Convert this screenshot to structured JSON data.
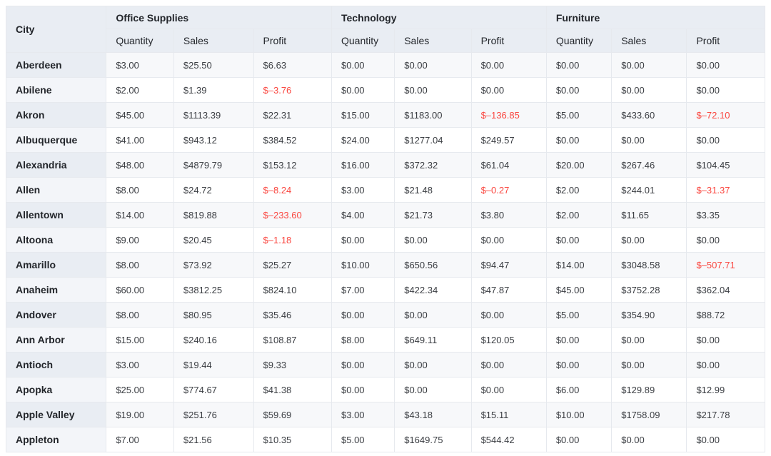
{
  "chart_data": {
    "type": "table",
    "row_dimension": "City",
    "column_groups": [
      "Office Supplies",
      "Technology",
      "Furniture"
    ],
    "measures": [
      "Quantity",
      "Sales",
      "Profit"
    ],
    "rows": [
      {
        "city": "Aberdeen",
        "values": [
          "$3.00",
          "$25.50",
          "$6.63",
          "$0.00",
          "$0.00",
          "$0.00",
          "$0.00",
          "$0.00",
          "$0.00"
        ]
      },
      {
        "city": "Abilene",
        "values": [
          "$2.00",
          "$1.39",
          "$–3.76",
          "$0.00",
          "$0.00",
          "$0.00",
          "$0.00",
          "$0.00",
          "$0.00"
        ]
      },
      {
        "city": "Akron",
        "values": [
          "$45.00",
          "$1113.39",
          "$22.31",
          "$15.00",
          "$1183.00",
          "$–136.85",
          "$5.00",
          "$433.60",
          "$–72.10"
        ]
      },
      {
        "city": "Albuquerque",
        "values": [
          "$41.00",
          "$943.12",
          "$384.52",
          "$24.00",
          "$1277.04",
          "$249.57",
          "$0.00",
          "$0.00",
          "$0.00"
        ]
      },
      {
        "city": "Alexandria",
        "values": [
          "$48.00",
          "$4879.79",
          "$153.12",
          "$16.00",
          "$372.32",
          "$61.04",
          "$20.00",
          "$267.46",
          "$104.45"
        ]
      },
      {
        "city": "Allen",
        "values": [
          "$8.00",
          "$24.72",
          "$–8.24",
          "$3.00",
          "$21.48",
          "$–0.27",
          "$2.00",
          "$244.01",
          "$–31.37"
        ]
      },
      {
        "city": "Allentown",
        "values": [
          "$14.00",
          "$819.88",
          "$–233.60",
          "$4.00",
          "$21.73",
          "$3.80",
          "$2.00",
          "$11.65",
          "$3.35"
        ]
      },
      {
        "city": "Altoona",
        "values": [
          "$9.00",
          "$20.45",
          "$–1.18",
          "$0.00",
          "$0.00",
          "$0.00",
          "$0.00",
          "$0.00",
          "$0.00"
        ]
      },
      {
        "city": "Amarillo",
        "values": [
          "$8.00",
          "$73.92",
          "$25.27",
          "$10.00",
          "$650.56",
          "$94.47",
          "$14.00",
          "$3048.58",
          "$–507.71"
        ]
      },
      {
        "city": "Anaheim",
        "values": [
          "$60.00",
          "$3812.25",
          "$824.10",
          "$7.00",
          "$422.34",
          "$47.87",
          "$45.00",
          "$3752.28",
          "$362.04"
        ]
      },
      {
        "city": "Andover",
        "values": [
          "$8.00",
          "$80.95",
          "$35.46",
          "$0.00",
          "$0.00",
          "$0.00",
          "$5.00",
          "$354.90",
          "$88.72"
        ]
      },
      {
        "city": "Ann Arbor",
        "values": [
          "$15.00",
          "$240.16",
          "$108.87",
          "$8.00",
          "$649.11",
          "$120.05",
          "$0.00",
          "$0.00",
          "$0.00"
        ]
      },
      {
        "city": "Antioch",
        "values": [
          "$3.00",
          "$19.44",
          "$9.33",
          "$0.00",
          "$0.00",
          "$0.00",
          "$0.00",
          "$0.00",
          "$0.00"
        ]
      },
      {
        "city": "Apopka",
        "values": [
          "$25.00",
          "$774.67",
          "$41.38",
          "$0.00",
          "$0.00",
          "$0.00",
          "$6.00",
          "$129.89",
          "$12.99"
        ]
      },
      {
        "city": "Apple Valley",
        "values": [
          "$19.00",
          "$251.76",
          "$59.69",
          "$3.00",
          "$43.18",
          "$15.11",
          "$10.00",
          "$1758.09",
          "$217.78"
        ]
      },
      {
        "city": "Appleton",
        "values": [
          "$7.00",
          "$21.56",
          "$10.35",
          "$5.00",
          "$1649.75",
          "$544.42",
          "$0.00",
          "$0.00",
          "$0.00"
        ]
      }
    ],
    "layout": {
      "column_widths": [
        "13.2%",
        "8.9%",
        "10.5%",
        "10.3%",
        "8.3%",
        "10.1%",
        "9.9%",
        "8.6%",
        "9.9%",
        "10.3%"
      ]
    }
  },
  "styles": {
    "negative_color": "#fa453e",
    "header_bg": "#e9edf3",
    "city_col_odd_bg": "#e9edf3",
    "city_col_even_bg": "#f3f5f9",
    "row_odd_bg": "#f7f8fa",
    "row_even_bg": "#ffffff",
    "border_color": "#e6e9ee"
  }
}
